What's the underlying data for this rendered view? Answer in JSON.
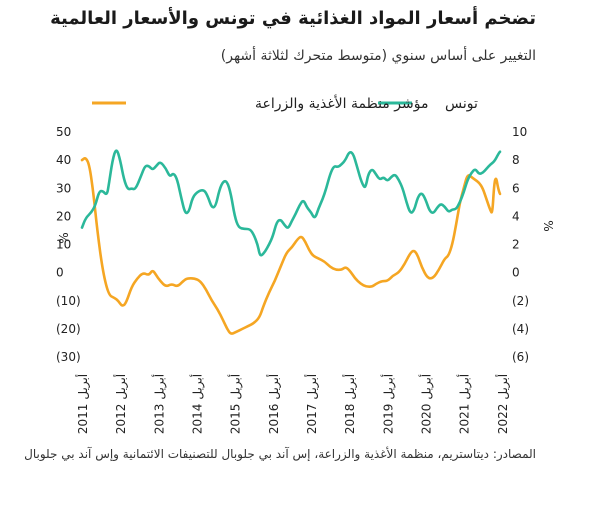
{
  "chart_data": {
    "type": "line",
    "title": "تضخم أسعار المواد الغذائية في تونس والأسعار العالمية",
    "subtitle": "التغيير على أساس سنوي (متوسط متحرك لثلاثة أشهر)",
    "source": "المصادر: ديتاستريم، منظمة الأغذية والزراعة، إس آند بي جلوبال للتصنيفات الائتمانية وإس آند بي جلوبال",
    "left_axis": {
      "label": "%",
      "ylim": [
        -30,
        50
      ],
      "ticks": [
        "50",
        "40",
        "30",
        "20",
        "10",
        "0",
        "(10)",
        "(20)",
        "(30)"
      ]
    },
    "right_axis": {
      "label": "%",
      "ylim": [
        -6,
        10
      ],
      "ticks": [
        "10",
        "8",
        "6",
        "4",
        "2",
        "0",
        "(2)",
        "(4)",
        "(6)"
      ]
    },
    "x_tick_month": "أبريل",
    "x_years": [
      "2011",
      "2012",
      "2013",
      "2014",
      "2015",
      "2016",
      "2017",
      "2018",
      "2019",
      "2020",
      "2021",
      "2022"
    ],
    "x_range": [
      2011.25,
      2022.2
    ],
    "series": [
      {
        "name": "مؤشر منظمة الأغذية والزراعة",
        "axis": "left",
        "color": "#F5A623",
        "points": [
          [
            2011.25,
            40
          ],
          [
            2011.35,
            41
          ],
          [
            2011.45,
            38
          ],
          [
            2011.55,
            28
          ],
          [
            2011.65,
            15
          ],
          [
            2011.8,
            0
          ],
          [
            2011.95,
            -8
          ],
          [
            2012.1,
            -9
          ],
          [
            2012.2,
            -10
          ],
          [
            2012.3,
            -12
          ],
          [
            2012.4,
            -11
          ],
          [
            2012.55,
            -5
          ],
          [
            2012.7,
            -2
          ],
          [
            2012.85,
            0
          ],
          [
            2013.0,
            -1
          ],
          [
            2013.1,
            1
          ],
          [
            2013.2,
            -1
          ],
          [
            2013.3,
            -3
          ],
          [
            2013.45,
            -5
          ],
          [
            2013.6,
            -4
          ],
          [
            2013.75,
            -5
          ],
          [
            2013.9,
            -3
          ],
          [
            2014.0,
            -2
          ],
          [
            2014.2,
            -2
          ],
          [
            2014.35,
            -3
          ],
          [
            2014.5,
            -6
          ],
          [
            2014.65,
            -10
          ],
          [
            2014.8,
            -13
          ],
          [
            2014.95,
            -17
          ],
          [
            2015.05,
            -20
          ],
          [
            2015.15,
            -22
          ],
          [
            2015.3,
            -21
          ],
          [
            2015.45,
            -20
          ],
          [
            2015.6,
            -19
          ],
          [
            2015.75,
            -18
          ],
          [
            2015.9,
            -16
          ],
          [
            2016.0,
            -12
          ],
          [
            2016.15,
            -7
          ],
          [
            2016.3,
            -3
          ],
          [
            2016.45,
            2
          ],
          [
            2016.6,
            7
          ],
          [
            2016.75,
            9
          ],
          [
            2016.9,
            12
          ],
          [
            2017.0,
            13
          ],
          [
            2017.1,
            11
          ],
          [
            2017.2,
            8
          ],
          [
            2017.3,
            6
          ],
          [
            2017.45,
            5
          ],
          [
            2017.6,
            4
          ],
          [
            2017.75,
            2
          ],
          [
            2017.9,
            1
          ],
          [
            2018.05,
            1
          ],
          [
            2018.15,
            2
          ],
          [
            2018.25,
            1
          ],
          [
            2018.4,
            -2
          ],
          [
            2018.55,
            -4
          ],
          [
            2018.7,
            -5
          ],
          [
            2018.85,
            -5
          ],
          [
            2018.95,
            -4
          ],
          [
            2019.1,
            -3
          ],
          [
            2019.25,
            -3
          ],
          [
            2019.4,
            -1
          ],
          [
            2019.55,
            0
          ],
          [
            2019.7,
            3
          ],
          [
            2019.85,
            7
          ],
          [
            2019.95,
            8
          ],
          [
            2020.05,
            6
          ],
          [
            2020.15,
            2
          ],
          [
            2020.3,
            -2
          ],
          [
            2020.45,
            -2
          ],
          [
            2020.6,
            1
          ],
          [
            2020.75,
            5
          ],
          [
            2020.85,
            6
          ],
          [
            2020.95,
            10
          ],
          [
            2021.05,
            17
          ],
          [
            2021.15,
            25
          ],
          [
            2021.25,
            30
          ],
          [
            2021.35,
            35
          ],
          [
            2021.45,
            34
          ],
          [
            2021.55,
            33
          ],
          [
            2021.65,
            32
          ],
          [
            2021.75,
            30
          ],
          [
            2021.85,
            26
          ],
          [
            2021.95,
            22
          ],
          [
            2022.0,
            21
          ],
          [
            2022.05,
            32
          ],
          [
            2022.1,
            34
          ],
          [
            2022.15,
            30
          ],
          [
            2022.2,
            28
          ]
        ]
      },
      {
        "name": "تونس",
        "axis": "right",
        "color": "#2BB89A",
        "points": [
          [
            2011.25,
            3.2
          ],
          [
            2011.35,
            3.9
          ],
          [
            2011.5,
            4.3
          ],
          [
            2011.6,
            4.8
          ],
          [
            2011.7,
            5.8
          ],
          [
            2011.8,
            5.8
          ],
          [
            2011.9,
            5.5
          ],
          [
            2011.95,
            6.2
          ],
          [
            2012.05,
            8.0
          ],
          [
            2012.15,
            8.9
          ],
          [
            2012.25,
            8.0
          ],
          [
            2012.35,
            6.6
          ],
          [
            2012.45,
            5.9
          ],
          [
            2012.55,
            6.0
          ],
          [
            2012.65,
            5.9
          ],
          [
            2012.8,
            6.9
          ],
          [
            2012.9,
            7.6
          ],
          [
            2013.0,
            7.6
          ],
          [
            2013.1,
            7.3
          ],
          [
            2013.2,
            7.6
          ],
          [
            2013.3,
            7.9
          ],
          [
            2013.45,
            7.4
          ],
          [
            2013.55,
            6.8
          ],
          [
            2013.65,
            7.1
          ],
          [
            2013.75,
            6.6
          ],
          [
            2013.85,
            5.3
          ],
          [
            2013.95,
            4.2
          ],
          [
            2014.05,
            4.3
          ],
          [
            2014.15,
            5.4
          ],
          [
            2014.3,
            5.8
          ],
          [
            2014.45,
            5.9
          ],
          [
            2014.55,
            5.4
          ],
          [
            2014.65,
            4.6
          ],
          [
            2014.75,
            4.7
          ],
          [
            2014.85,
            5.9
          ],
          [
            2014.95,
            6.5
          ],
          [
            2015.05,
            6.5
          ],
          [
            2015.15,
            5.6
          ],
          [
            2015.25,
            4.0
          ],
          [
            2015.35,
            3.2
          ],
          [
            2015.5,
            3.1
          ],
          [
            2015.65,
            3.1
          ],
          [
            2015.75,
            2.7
          ],
          [
            2015.85,
            2.0
          ],
          [
            2015.9,
            1.3
          ],
          [
            2015.95,
            1.2
          ],
          [
            2016.05,
            1.5
          ],
          [
            2016.15,
            2.0
          ],
          [
            2016.25,
            2.6
          ],
          [
            2016.35,
            3.6
          ],
          [
            2016.45,
            3.8
          ],
          [
            2016.55,
            3.4
          ],
          [
            2016.65,
            3.1
          ],
          [
            2016.75,
            3.7
          ],
          [
            2016.85,
            4.2
          ],
          [
            2016.95,
            4.8
          ],
          [
            2017.05,
            5.2
          ],
          [
            2017.15,
            4.6
          ],
          [
            2017.25,
            4.3
          ],
          [
            2017.35,
            3.8
          ],
          [
            2017.45,
            4.6
          ],
          [
            2017.55,
            5.2
          ],
          [
            2017.65,
            6.0
          ],
          [
            2017.75,
            7.0
          ],
          [
            2017.85,
            7.6
          ],
          [
            2017.95,
            7.5
          ],
          [
            2018.05,
            7.7
          ],
          [
            2018.15,
            8.0
          ],
          [
            2018.25,
            8.6
          ],
          [
            2018.35,
            8.5
          ],
          [
            2018.45,
            7.6
          ],
          [
            2018.55,
            6.6
          ],
          [
            2018.65,
            6.0
          ],
          [
            2018.7,
            6.3
          ],
          [
            2018.75,
            7.0
          ],
          [
            2018.85,
            7.4
          ],
          [
            2018.95,
            7.0
          ],
          [
            2019.05,
            6.6
          ],
          [
            2019.15,
            6.8
          ],
          [
            2019.25,
            6.5
          ],
          [
            2019.35,
            6.8
          ],
          [
            2019.45,
            7.0
          ],
          [
            2019.55,
            6.6
          ],
          [
            2019.65,
            6.0
          ],
          [
            2019.75,
            5.0
          ],
          [
            2019.85,
            4.2
          ],
          [
            2019.95,
            4.4
          ],
          [
            2020.05,
            5.4
          ],
          [
            2020.15,
            5.7
          ],
          [
            2020.25,
            5.2
          ],
          [
            2020.35,
            4.4
          ],
          [
            2020.45,
            4.2
          ],
          [
            2020.55,
            4.6
          ],
          [
            2020.65,
            4.9
          ],
          [
            2020.75,
            4.7
          ],
          [
            2020.85,
            4.3
          ],
          [
            2020.95,
            4.5
          ],
          [
            2021.05,
            4.5
          ],
          [
            2021.15,
            5.0
          ],
          [
            2021.25,
            5.7
          ],
          [
            2021.35,
            6.6
          ],
          [
            2021.45,
            7.1
          ],
          [
            2021.55,
            7.4
          ],
          [
            2021.65,
            7.0
          ],
          [
            2021.75,
            7.1
          ],
          [
            2021.85,
            7.4
          ],
          [
            2021.95,
            7.7
          ],
          [
            2022.05,
            7.9
          ],
          [
            2022.15,
            8.4
          ],
          [
            2022.2,
            8.6
          ]
        ]
      }
    ],
    "legend_location": "top"
  }
}
